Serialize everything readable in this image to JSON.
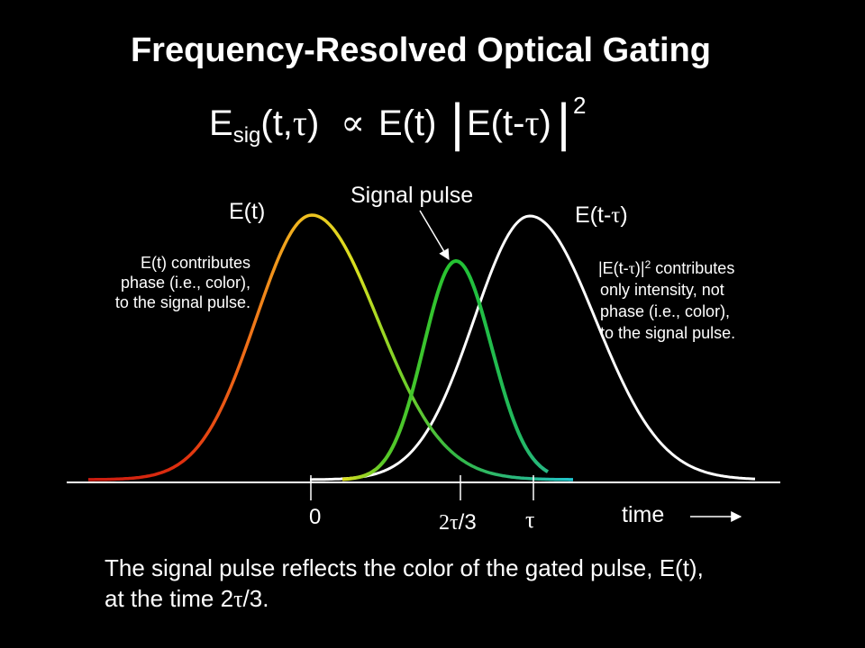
{
  "slide": {
    "title": "Frequency-Resolved Optical Gating",
    "equation": {
      "lhs_main": "E",
      "lhs_sub": "sig",
      "lhs_args_open": "(t,",
      "lhs_tau": "τ",
      "lhs_args_close": ")",
      "proportional": "∝",
      "rhs_e_of_t": "E(t)",
      "abs_bar": "|",
      "rhs_inner_a": "E(t-",
      "rhs_inner_tau": "τ",
      "rhs_inner_b": ")",
      "power": "2"
    },
    "labels": {
      "e_t": "E(t)",
      "signal_pulse": "Signal pulse",
      "e_t_tau_a": "E(t-",
      "e_t_tau_tau": "τ",
      "e_t_tau_b": ")"
    },
    "left_note": [
      "E(t) contributes",
      "phase (i.e., color),",
      "to the signal pulse."
    ],
    "right_note": {
      "line1_prefix": "|E(t-",
      "line1_tau": "τ",
      "line1_close": ")|",
      "line1_power": "2",
      "line1_suffix": " contributes",
      "lines": [
        "only intensity, not",
        "phase (i.e., color),",
        "to the signal pulse."
      ]
    },
    "axis": {
      "tick_0": "0",
      "tick_2tau3_a": "2",
      "tick_2tau3_tau": "τ",
      "tick_2tau3_b": "/3",
      "tick_tau": "τ",
      "time_label": "time"
    },
    "caption": {
      "line1": "The signal pulse reflects the color of the gated pulse, E(t),",
      "line2_a": "at the time 2",
      "line2_tau": "τ",
      "line2_b": "/3."
    },
    "colors": {
      "background": "#000000",
      "text": "#ffffff",
      "gate_curve": "#ffffff",
      "signal_curve_peak": "#22c232",
      "color_gradient": [
        "#c81a10",
        "#e83a10",
        "#f07018",
        "#f0a020",
        "#f0e020",
        "#a8e020",
        "#58c828",
        "#30b848",
        "#28b890",
        "#20c8d8"
      ]
    }
  }
}
